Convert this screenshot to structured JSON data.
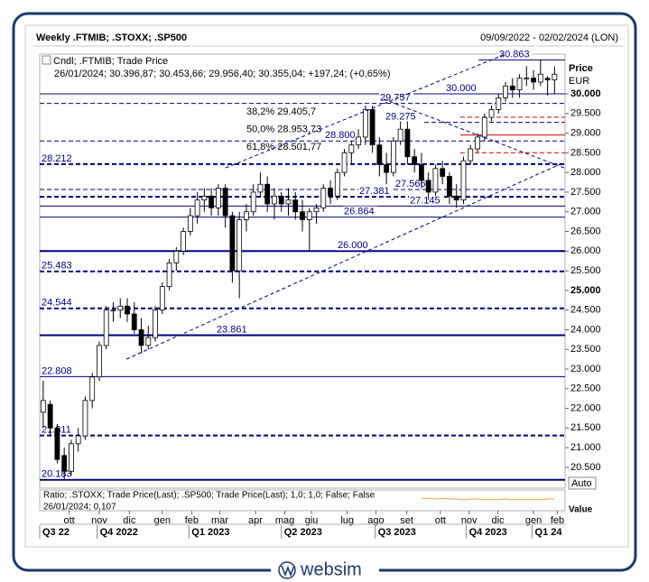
{
  "chart_data": {
    "type": "candlestick",
    "title": "Weekly .FTMIB; .STOXX; .SP500",
    "date_range": "09/09/2022 - 02/02/2024 (LON)",
    "legend_title": "Cndl; .FTMIB; Trade Price",
    "legend_values": "26/01/2024; 30.396,87; 30.453,66; 29.956,40; 30.355,04; +197,24; (+0,65%)",
    "axis_label": "Price",
    "axis_unit": "EUR",
    "up_color": "#ffffff",
    "down_color": "#000000",
    "ylim": [
      19970,
      31010
    ],
    "yticks": [
      {
        "value": 20500,
        "label": "20.500"
      },
      {
        "value": 21000,
        "label": "21.000"
      },
      {
        "value": 21500,
        "label": "21.500"
      },
      {
        "value": 22000,
        "label": "22.000"
      },
      {
        "value": 22500,
        "label": "22.500"
      },
      {
        "value": 23000,
        "label": "23.000"
      },
      {
        "value": 23500,
        "label": "23.500"
      },
      {
        "value": 24000,
        "label": "24.000"
      },
      {
        "value": 24500,
        "label": "24.500"
      },
      {
        "value": 25000,
        "label": "25.000"
      },
      {
        "value": 25500,
        "label": "25.500"
      },
      {
        "value": 26000,
        "label": "26.000"
      },
      {
        "value": 26500,
        "label": "26.500"
      },
      {
        "value": 27000,
        "label": "27.000"
      },
      {
        "value": 27500,
        "label": "27.500"
      },
      {
        "value": 28000,
        "label": "28.000"
      },
      {
        "value": 28500,
        "label": "28.500"
      },
      {
        "value": 29000,
        "label": "29.000"
      },
      {
        "value": 29500,
        "label": "29.500"
      },
      {
        "value": 30000,
        "label": "30.000"
      }
    ],
    "xlim": [
      -0.5,
      74.5
    ],
    "xticks": [
      {
        "value": 3.7,
        "label": "ott"
      },
      {
        "value": 8,
        "label": "nov"
      },
      {
        "value": 12.3,
        "label": "dic"
      },
      {
        "value": 17,
        "label": "gen"
      },
      {
        "value": 21.2,
        "label": "feb"
      },
      {
        "value": 25.2,
        "label": "mar"
      },
      {
        "value": 30.3,
        "label": "apr"
      },
      {
        "value": 34.5,
        "label": "mag"
      },
      {
        "value": 38.3,
        "label": "giu"
      },
      {
        "value": 43.4,
        "label": "lug"
      },
      {
        "value": 47.5,
        "label": "ago"
      },
      {
        "value": 51.9,
        "label": "set"
      },
      {
        "value": 56.7,
        "label": "ott"
      },
      {
        "value": 60.8,
        "label": "nov"
      },
      {
        "value": 64.9,
        "label": "dic"
      },
      {
        "value": 70,
        "label": "gen"
      },
      {
        "value": 73.4,
        "label": "feb"
      }
    ],
    "quarters": [
      {
        "value": -0.5,
        "label": "Q3 22"
      },
      {
        "value": 7.7,
        "label": "Q4 2022"
      },
      {
        "value": 20.8,
        "label": "Q1 2023"
      },
      {
        "value": 34,
        "label": "Q2 2023"
      },
      {
        "value": 47.4,
        "label": "Q3 2023"
      },
      {
        "value": 60.4,
        "label": "Q4 2023"
      },
      {
        "value": 69.8,
        "label": "Q1 24"
      }
    ],
    "candles": [
      [
        21900,
        22700,
        21500,
        22200
      ],
      [
        22100,
        22200,
        21300,
        21500
      ],
      [
        21500,
        21600,
        20600,
        20700
      ],
      [
        20800,
        21000,
        20200,
        20400
      ],
      [
        20400,
        21200,
        20300,
        21100
      ],
      [
        21100,
        21500,
        20900,
        21300
      ],
      [
        21300,
        22300,
        21200,
        22200
      ],
      [
        22200,
        22900,
        22000,
        22800
      ],
      [
        22800,
        23700,
        22700,
        23600
      ],
      [
        23600,
        24600,
        23500,
        24500
      ],
      [
        24500,
        24700,
        24200,
        24500
      ],
      [
        24500,
        24800,
        24300,
        24600
      ],
      [
        24600,
        24800,
        24200,
        24400
      ],
      [
        24400,
        24700,
        23900,
        24000
      ],
      [
        24000,
        24300,
        23400,
        23600
      ],
      [
        23600,
        24100,
        23500,
        23800
      ],
      [
        23800,
        24600,
        23700,
        24500
      ],
      [
        24500,
        25200,
        24400,
        25100
      ],
      [
        25100,
        25800,
        25000,
        25700
      ],
      [
        25700,
        26100,
        25500,
        26000
      ],
      [
        26000,
        26600,
        25900,
        26500
      ],
      [
        26500,
        27100,
        26400,
        26900
      ],
      [
        26900,
        27500,
        26700,
        27300
      ],
      [
        27300,
        27600,
        27000,
        27400
      ],
      [
        27400,
        27600,
        26900,
        27100
      ],
      [
        27100,
        27700,
        26900,
        27600
      ],
      [
        27600,
        27700,
        26600,
        26900
      ],
      [
        26900,
        27000,
        25200,
        25500
      ],
      [
        25500,
        27000,
        24800,
        26800
      ],
      [
        26800,
        27200,
        26500,
        27000
      ],
      [
        27000,
        27700,
        26900,
        27500
      ],
      [
        27500,
        28000,
        27400,
        27700
      ],
      [
        27700,
        27900,
        27000,
        27200
      ],
      [
        27200,
        27600,
        26800,
        27400
      ],
      [
        27400,
        27500,
        27000,
        27200
      ],
      [
        27200,
        27600,
        26900,
        27300
      ],
      [
        27300,
        27500,
        26800,
        27000
      ],
      [
        27000,
        27300,
        26500,
        26800
      ],
      [
        26800,
        27100,
        26000,
        27000
      ],
      [
        27000,
        27200,
        26700,
        27100
      ],
      [
        27100,
        27700,
        27000,
        27600
      ],
      [
        27600,
        27800,
        27200,
        27400
      ],
      [
        27400,
        28100,
        27300,
        28000
      ],
      [
        28000,
        28600,
        27900,
        28500
      ],
      [
        28500,
        28800,
        28200,
        28700
      ],
      [
        28700,
        29100,
        28600,
        28900
      ],
      [
        28900,
        29700,
        28700,
        29600
      ],
      [
        29600,
        29700,
        28500,
        28700
      ],
      [
        28700,
        28900,
        27900,
        28200
      ],
      [
        28200,
        28500,
        27700,
        28000
      ],
      [
        28000,
        28900,
        27900,
        28800
      ],
      [
        28800,
        29300,
        28700,
        29100
      ],
      [
        29100,
        29300,
        28200,
        28400
      ],
      [
        28400,
        28600,
        28000,
        28200
      ],
      [
        28200,
        28500,
        27600,
        27800
      ],
      [
        27800,
        28000,
        27300,
        27500
      ],
      [
        27500,
        28200,
        27400,
        28100
      ],
      [
        28100,
        28300,
        27700,
        27900
      ],
      [
        27900,
        28000,
        27200,
        27400
      ],
      [
        27400,
        27700,
        27100,
        27300
      ],
      [
        27300,
        28400,
        27200,
        28300
      ],
      [
        28300,
        28700,
        28200,
        28600
      ],
      [
        28600,
        29000,
        28500,
        28900
      ],
      [
        28900,
        29500,
        28800,
        29400
      ],
      [
        29400,
        29700,
        29300,
        29600
      ],
      [
        29600,
        30000,
        29500,
        29900
      ],
      [
        29900,
        30300,
        29800,
        30200
      ],
      [
        30200,
        30400,
        29900,
        30100
      ],
      [
        30100,
        30500,
        29900,
        30400
      ],
      [
        30400,
        30700,
        30200,
        30400
      ],
      [
        30400,
        30600,
        30100,
        30300
      ],
      [
        30300,
        30863,
        30200,
        30500
      ],
      [
        30396.87,
        30453.66,
        29956.4,
        30355.04
      ],
      [
        30355,
        30700,
        30000,
        30500
      ]
    ],
    "levels": [
      {
        "value": 30863,
        "label": "30.863",
        "style": "solid"
      },
      {
        "value": 30000,
        "label": "30.000",
        "style": "solid"
      },
      {
        "value": 29757,
        "label": "29.757",
        "style": "dashed"
      },
      {
        "value": 29275,
        "label": "29.275",
        "style": "dashed"
      },
      {
        "value": 28800,
        "label": "28.800",
        "style": "dashed"
      },
      {
        "value": 28212,
        "label": "28.212",
        "style": "dashed-bold"
      },
      {
        "value": 27566,
        "label": "27.566",
        "style": "dashed"
      },
      {
        "value": 27381,
        "label": "27.381",
        "style": "dashed-bold"
      },
      {
        "value": 27145,
        "label": "27.145",
        "style": "solid"
      },
      {
        "value": 26864,
        "label": "26.864",
        "style": "solid"
      },
      {
        "value": 26000,
        "label": "26.000",
        "style": "solid-bold"
      },
      {
        "value": 25483,
        "label": "25.483",
        "style": "dashed-bold"
      },
      {
        "value": 24544,
        "label": "24.544",
        "style": "dashed-bold"
      },
      {
        "value": 23861,
        "label": "23.861",
        "style": "solid-bold"
      },
      {
        "value": 22808,
        "label": "22.808",
        "style": "solid"
      },
      {
        "value": 21311,
        "label": "21.311",
        "style": "dashed-bold"
      },
      {
        "value": 20183,
        "label": "20.183",
        "style": "solid-bold"
      }
    ],
    "fibonacci": [
      {
        "value": 29405.7,
        "label": "38,2% 29.405,7",
        "style": "dashed"
      },
      {
        "value": 28953.73,
        "label": "50,0% 28.953,73",
        "style": "solid"
      },
      {
        "value": 28501.77,
        "label": "61,8% 28.501,77",
        "style": "dashed"
      }
    ],
    "fib_color": "#e00000",
    "level_color": "#000080",
    "ratio_title": "Ratio; .STOXX; Trade Price(Last); .SP500; Trade Price(Last);  1,0; 1,0; False; False",
    "ratio_last": "26/01/2024; 0,107",
    "ratio_color": "#f0a030",
    "ratio_ylim": [
      0.09,
      0.12
    ],
    "ratio_values": [
      0.108,
      0.108,
      0.107,
      0.108,
      0.107,
      0.107,
      0.106,
      0.107,
      0.107,
      0.106,
      0.106,
      0.106,
      0.107,
      0.106,
      0.106,
      0.106,
      0.106,
      0.106,
      0.107,
      0.107
    ],
    "ratio_start": 54,
    "ratio_scale": "Auto",
    "ratio_axis_label": "Value"
  }
}
